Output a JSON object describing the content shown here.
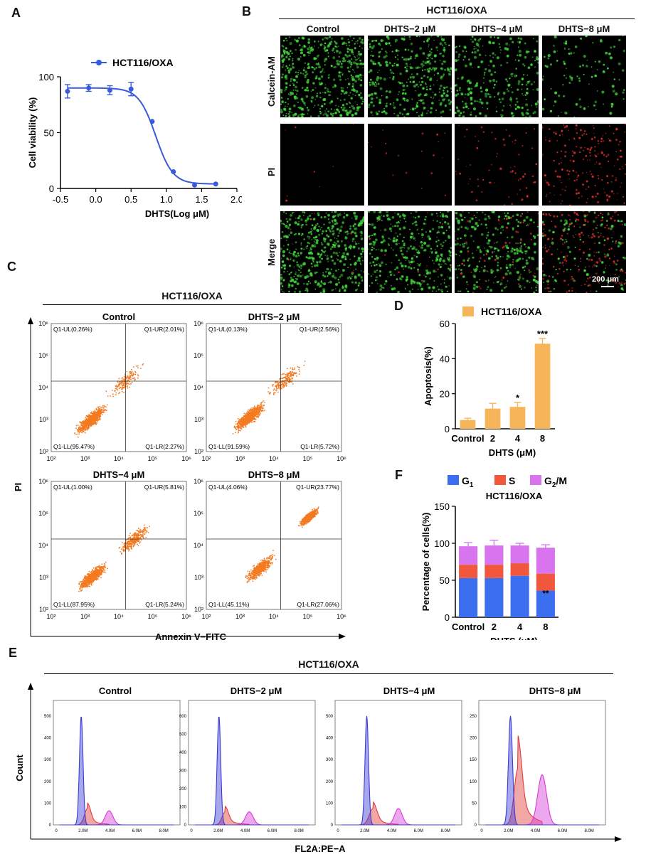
{
  "panels": {
    "A": "A",
    "B": "B",
    "C": "C",
    "D": "D",
    "E": "E",
    "F": "F"
  },
  "cell_line": "HCT116/OXA",
  "groups": [
    "Control",
    "DHTS−2 μM",
    "DHTS−4 μM",
    "DHTS−8 μM"
  ],
  "panelB": {
    "rows": [
      "Calcein-AM",
      "PI",
      "Merge"
    ],
    "scale_bar": "200 μm",
    "fluor_density": [
      [
        0.55,
        0.4,
        0.3,
        0.12
      ],
      [
        0.01,
        0.02,
        0.08,
        0.22
      ],
      [
        0.55,
        0.4,
        0.3,
        0.12
      ]
    ],
    "colors": {
      "green": "#3fd23a",
      "red": "#e0302b",
      "background": "#000000"
    }
  },
  "panelC": {
    "ylabel": "PI",
    "xlabel": "Annexin V−FITC",
    "tick_labels": [
      "10²",
      "10³",
      "10⁴",
      "10⁵",
      "10⁶"
    ],
    "plots": [
      {
        "UL": "Q1-UL(0.26%)",
        "UR": "Q1-UR(2.01%)",
        "LL": "Q1-LL(95.47%)",
        "LR": "Q1-LR(2.27%)"
      },
      {
        "UL": "Q1-UL(0.13%)",
        "UR": "Q1-UR(2.56%)",
        "LL": "Q1-LL(91.59%)",
        "LR": "Q1-LR(5.72%)"
      },
      {
        "UL": "Q1-UL(1.00%)",
        "UR": "Q1-UR(5.81%)",
        "LL": "Q1-LL(87.95%)",
        "LR": "Q1-LR(5.24%)"
      },
      {
        "UL": "Q1-UL(4.06%)",
        "UR": "Q1-UR(23.77%)",
        "LL": "Q1-LL(45.11%)",
        "LR": "Q1-LR(27.06%)"
      }
    ],
    "dot_color": "#f47a20"
  },
  "panelE": {
    "ylabel": "Count",
    "xlabel": "FL2A:PE−A",
    "x_ticks": [
      "0",
      "2.0M",
      "4.0M",
      "6.0M",
      "8.0M"
    ],
    "y_ticks": [
      [
        "0",
        "100",
        "200",
        "300",
        "400",
        "500"
      ],
      [
        "0",
        "100",
        "200",
        "300",
        "400",
        "500",
        "600"
      ],
      [
        "0",
        "100",
        "200",
        "300",
        "400",
        "500"
      ],
      [
        "0",
        "50",
        "100",
        "150",
        "200",
        "250"
      ]
    ],
    "colors": {
      "G1": "#3b3bd6",
      "S": "#e23b3b",
      "G2M": "#d63bd6"
    }
  },
  "chart_data": [
    {
      "type": "line",
      "panel": "A",
      "legend": "HCT116/OXA",
      "xlabel": "DHTS(Log μM)",
      "ylabel": "Cell viability (%)",
      "xlim": [
        -0.5,
        2.0
      ],
      "ylim": [
        0,
        100
      ],
      "x_ticks": [
        "-0.5",
        "0.0",
        "0.5",
        "1.0",
        "1.5",
        "2.0"
      ],
      "y_ticks": [
        "0",
        "50",
        "100"
      ],
      "x": [
        -0.4,
        -0.1,
        0.2,
        0.5,
        0.8,
        1.1,
        1.4,
        1.7
      ],
      "y": [
        87,
        90,
        88,
        89,
        60,
        15,
        3,
        4
      ],
      "err": [
        6,
        3,
        4,
        6,
        0,
        0,
        0,
        0
      ],
      "color": "#3a5bd9"
    },
    {
      "type": "bar",
      "panel": "D",
      "legend": "HCT116/OXA",
      "categories": [
        "Control",
        "2",
        "4",
        "8"
      ],
      "values": [
        5,
        11.5,
        12.5,
        48.5
      ],
      "err": [
        1,
        3,
        2.5,
        3
      ],
      "significance": [
        "",
        "",
        "*",
        "***"
      ],
      "xlabel": "DHTS (μM)",
      "ylabel": "Apoptosis(%)",
      "ylim": [
        0,
        60
      ],
      "y_ticks": [
        "0",
        "20",
        "40",
        "60"
      ],
      "color": "#f7b55a"
    },
    {
      "type": "bar",
      "panel": "F",
      "title": "HCT116/OXA",
      "stacked": true,
      "categories": [
        "Control",
        "2",
        "4",
        "8"
      ],
      "series": [
        {
          "name": "G1",
          "values": [
            53,
            53,
            56,
            36
          ],
          "err": [
            6,
            6,
            5,
            4
          ],
          "color": "#3c6ef0"
        },
        {
          "name": "S",
          "values": [
            18,
            18,
            17,
            23
          ],
          "err": [
            5,
            5,
            4,
            11
          ],
          "color": "#f0573c"
        },
        {
          "name": "G2/M",
          "values": [
            25,
            26,
            24,
            35
          ],
          "err": [
            5,
            7,
            3,
            4
          ],
          "color": "#d874ee"
        }
      ],
      "legend_labels": [
        "G",
        "S",
        "G"
      ],
      "legend_subs": [
        "1",
        "",
        "2"
      ],
      "legend_suffix": [
        "",
        "",
        "/M"
      ],
      "significance": [
        "",
        "",
        "",
        "**"
      ],
      "xlabel": "DHTS (μM)",
      "ylabel": "Percentage of cells(%)",
      "ylim": [
        0,
        150
      ],
      "y_ticks": [
        "0",
        "50",
        "100",
        "150"
      ]
    }
  ]
}
